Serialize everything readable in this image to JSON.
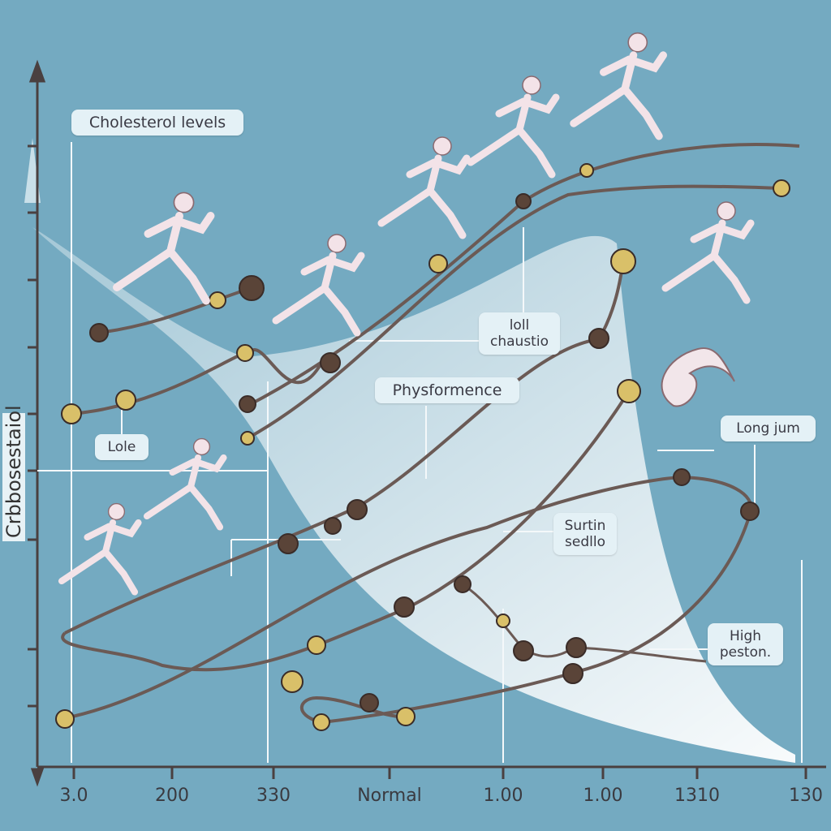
{
  "chart_data": {
    "type": "line",
    "title": "Cholesterol levels",
    "ylabel": "Crbbosestaiol",
    "xlabel": "",
    "x_tick_labels": [
      "3.0",
      "200",
      "330",
      "Normal",
      "1.00",
      "1.00",
      "1310",
      "130"
    ],
    "annotations": [
      "Cholesterol levels",
      "Lole",
      "loll chaustio",
      "Physformence",
      "Long jum",
      "Surtin sedllo",
      "High peston."
    ],
    "grid": false,
    "legend": "none"
  },
  "colors": {
    "background": "#74aac1",
    "line": "#6b5a55",
    "dot_dark": "#5a4438",
    "dot_gold": "#d9c069",
    "label_bg": "#e4f1f6"
  }
}
